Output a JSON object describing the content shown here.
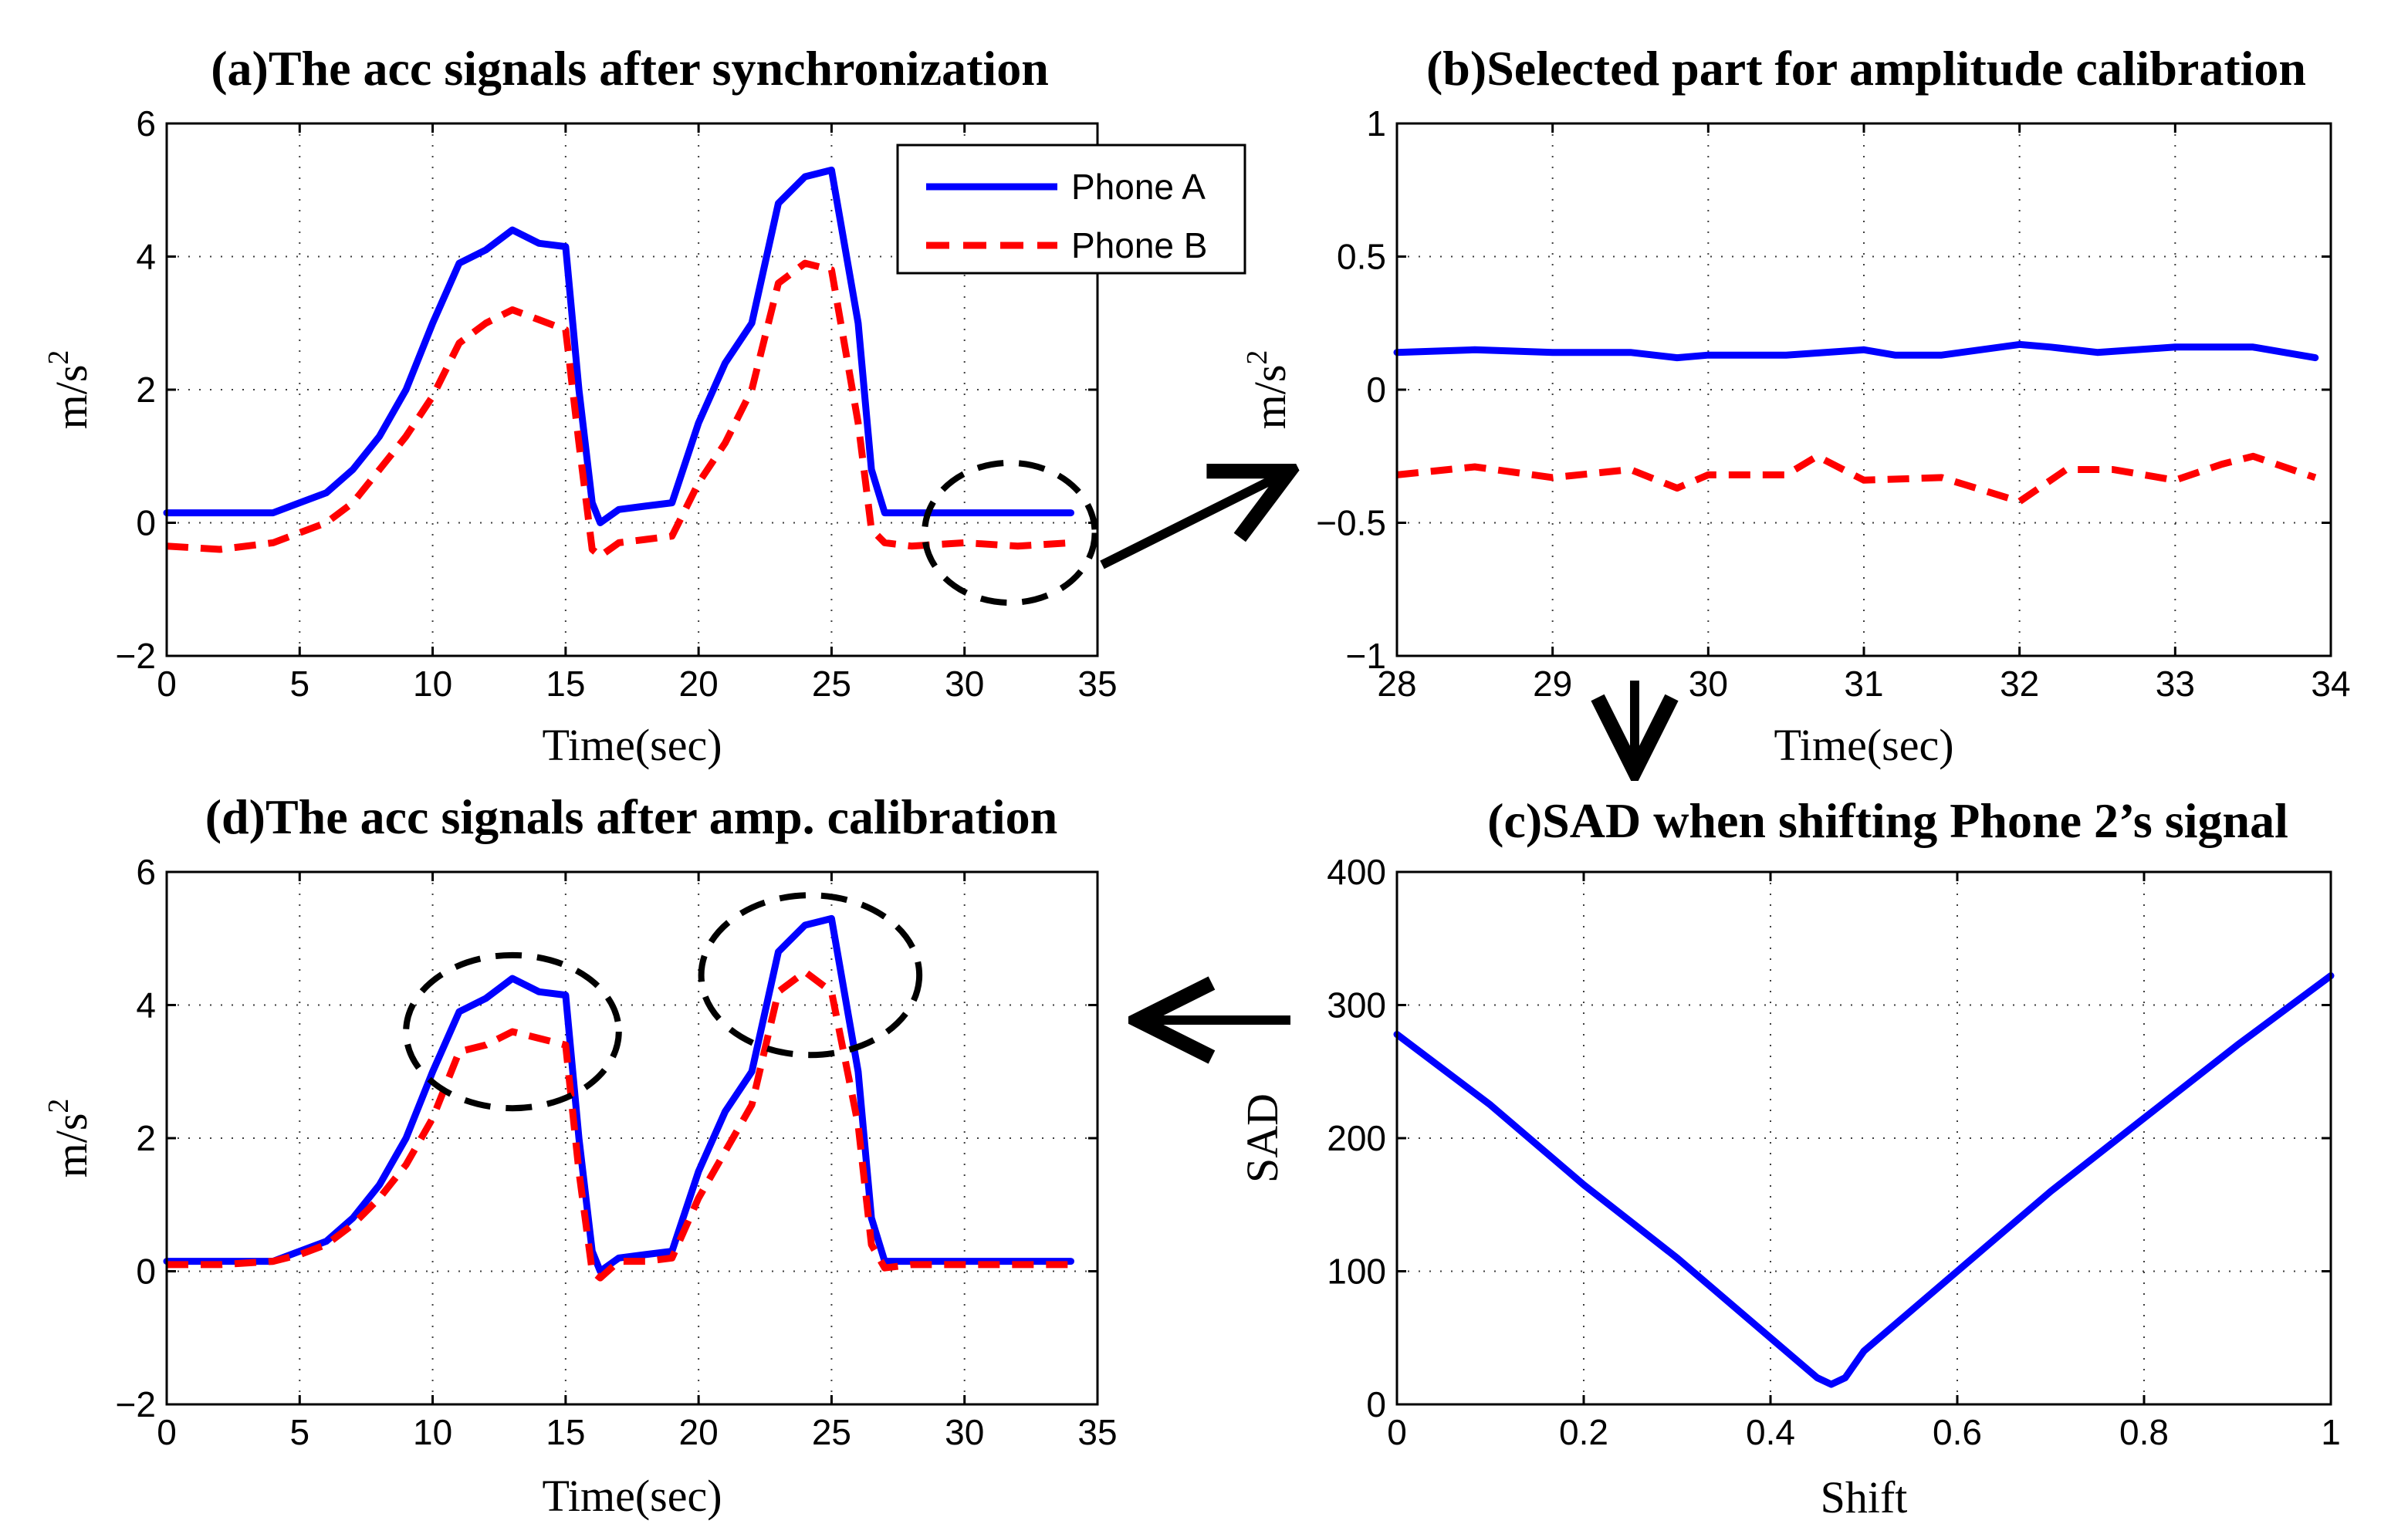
{
  "colors": {
    "phone_a": "#0000ff",
    "phone_b": "#ff0000",
    "annotation": "#000000"
  },
  "chart_data": [
    {
      "id": "a",
      "type": "line",
      "title": "(a)The acc signals after synchronization",
      "xlabel": "Time(sec)",
      "ylabel": "m/s",
      "ylabel_sup": "2",
      "xlim": [
        0,
        35
      ],
      "ylim": [
        -2,
        6
      ],
      "xticks": [
        0,
        5,
        10,
        15,
        20,
        25,
        30,
        35
      ],
      "yticks": [
        -2,
        0,
        2,
        4,
        6
      ],
      "xticklabels": [
        "0",
        "5",
        "10",
        "15",
        "20",
        "25",
        "30",
        "35"
      ],
      "yticklabels": [
        "−2",
        "0",
        "2",
        "4",
        "6"
      ],
      "grid": true,
      "legend": {
        "position": "top-right",
        "entries": [
          "Phone A",
          "Phone B"
        ]
      },
      "series": [
        {
          "name": "Phone A",
          "style": "solid",
          "color": "#0000ff",
          "x": [
            0,
            4,
            5,
            6,
            7,
            8,
            9,
            10,
            11,
            12,
            13,
            14,
            15,
            15.5,
            16,
            16.3,
            17,
            18,
            19,
            20,
            21,
            22,
            23,
            24,
            25,
            26,
            26.5,
            27,
            28,
            30,
            32,
            34
          ],
          "y": [
            0.15,
            0.15,
            0.3,
            0.45,
            0.8,
            1.3,
            2.0,
            3.0,
            3.9,
            4.1,
            4.4,
            4.2,
            4.15,
            2.0,
            0.3,
            0.0,
            0.2,
            0.25,
            0.3,
            1.5,
            2.4,
            3.0,
            4.8,
            5.2,
            5.3,
            3.0,
            0.8,
            0.15,
            0.15,
            0.15,
            0.15,
            0.15
          ]
        },
        {
          "name": "Phone B",
          "style": "dashed",
          "color": "#ff0000",
          "x": [
            0,
            2,
            4,
            5,
            6,
            7,
            8,
            9,
            10,
            11,
            12,
            13,
            14,
            15,
            15.5,
            16,
            16.3,
            17,
            18,
            19,
            20,
            21,
            22,
            23,
            24,
            25,
            26,
            26.5,
            27,
            28,
            30,
            32,
            34
          ],
          "y": [
            -0.35,
            -0.4,
            -0.3,
            -0.15,
            0.0,
            0.3,
            0.8,
            1.3,
            1.9,
            2.7,
            3.0,
            3.2,
            3.05,
            2.9,
            1.2,
            -0.4,
            -0.5,
            -0.3,
            -0.25,
            -0.2,
            0.6,
            1.2,
            2.0,
            3.6,
            3.9,
            3.8,
            1.5,
            -0.1,
            -0.3,
            -0.35,
            -0.3,
            -0.35,
            -0.3
          ]
        }
      ]
    },
    {
      "id": "b",
      "type": "line",
      "title": "(b)Selected part for amplitude calibration",
      "xlabel": "Time(sec)",
      "ylabel": "m/s",
      "ylabel_sup": "2",
      "xlim": [
        28,
        34
      ],
      "ylim": [
        -1,
        1
      ],
      "xticks": [
        28,
        29,
        30,
        31,
        32,
        33,
        34
      ],
      "yticks": [
        -1,
        -0.5,
        0,
        0.5,
        1
      ],
      "xticklabels": [
        "28",
        "29",
        "30",
        "31",
        "32",
        "33",
        "34"
      ],
      "yticklabels": [
        "−1",
        "−0.5",
        "0",
        "0.5",
        "1"
      ],
      "grid": true,
      "series": [
        {
          "name": "Phone A",
          "style": "solid",
          "color": "#0000ff",
          "x": [
            28,
            28.5,
            29,
            29.5,
            29.8,
            30,
            30.5,
            31,
            31.2,
            31.5,
            32,
            32.2,
            32.5,
            33,
            33.5,
            33.9
          ],
          "y": [
            0.14,
            0.15,
            0.14,
            0.14,
            0.12,
            0.13,
            0.13,
            0.15,
            0.13,
            0.13,
            0.17,
            0.16,
            0.14,
            0.16,
            0.16,
            0.12
          ]
        },
        {
          "name": "Phone B",
          "style": "dashed",
          "color": "#ff0000",
          "x": [
            28,
            28.5,
            29,
            29.5,
            29.8,
            30,
            30.5,
            30.7,
            31,
            31.5,
            32,
            32.3,
            32.6,
            33,
            33.3,
            33.5,
            33.9
          ],
          "y": [
            -0.32,
            -0.29,
            -0.33,
            -0.3,
            -0.37,
            -0.32,
            -0.32,
            -0.25,
            -0.34,
            -0.33,
            -0.42,
            -0.3,
            -0.3,
            -0.34,
            -0.28,
            -0.25,
            -0.33
          ]
        }
      ]
    },
    {
      "id": "c",
      "type": "line",
      "title": "(c)SAD when shifting Phone 2’s signal",
      "xlabel": "Shift",
      "ylabel": "SAD",
      "xlim": [
        0,
        1
      ],
      "ylim": [
        0,
        400
      ],
      "xticks": [
        0,
        0.2,
        0.4,
        0.6,
        0.8,
        1
      ],
      "yticks": [
        0,
        100,
        200,
        300,
        400
      ],
      "xticklabels": [
        "0",
        "0.2",
        "0.4",
        "0.6",
        "0.8",
        "1"
      ],
      "yticklabels": [
        "0",
        "100",
        "200",
        "300",
        "400"
      ],
      "grid": true,
      "series": [
        {
          "name": "SAD",
          "style": "solid",
          "color": "#0000ff",
          "x": [
            0,
            0.1,
            0.2,
            0.3,
            0.4,
            0.45,
            0.465,
            0.48,
            0.5,
            0.6,
            0.7,
            0.8,
            0.9,
            1.0
          ],
          "y": [
            278,
            225,
            165,
            110,
            50,
            20,
            15,
            20,
            40,
            100,
            160,
            215,
            270,
            322
          ]
        }
      ]
    },
    {
      "id": "d",
      "type": "line",
      "title": "(d)The acc signals after amp. calibration",
      "xlabel": "Time(sec)",
      "ylabel": "m/s",
      "ylabel_sup": "2",
      "xlim": [
        0,
        35
      ],
      "ylim": [
        -2,
        6
      ],
      "xticks": [
        0,
        5,
        10,
        15,
        20,
        25,
        30,
        35
      ],
      "yticks": [
        -2,
        0,
        2,
        4,
        6
      ],
      "xticklabels": [
        "0",
        "5",
        "10",
        "15",
        "20",
        "25",
        "30",
        "35"
      ],
      "yticklabels": [
        "−2",
        "0",
        "2",
        "4",
        "6"
      ],
      "grid": true,
      "series": [
        {
          "name": "Phone A",
          "style": "solid",
          "color": "#0000ff",
          "x": [
            0,
            4,
            5,
            6,
            7,
            8,
            9,
            10,
            11,
            12,
            13,
            14,
            15,
            15.5,
            16,
            16.3,
            17,
            18,
            19,
            20,
            21,
            22,
            23,
            24,
            25,
            26,
            26.5,
            27,
            28,
            30,
            32,
            34
          ],
          "y": [
            0.15,
            0.15,
            0.3,
            0.45,
            0.8,
            1.3,
            2.0,
            3.0,
            3.9,
            4.1,
            4.4,
            4.2,
            4.15,
            2.0,
            0.3,
            0.0,
            0.2,
            0.25,
            0.3,
            1.5,
            2.4,
            3.0,
            4.8,
            5.2,
            5.3,
            3.0,
            0.8,
            0.15,
            0.15,
            0.15,
            0.15,
            0.15
          ]
        },
        {
          "name": "Phone B",
          "style": "dashed",
          "color": "#ff0000",
          "x": [
            0,
            2,
            4,
            5,
            6,
            7,
            8,
            9,
            10,
            11,
            12,
            13,
            14,
            15,
            15.5,
            16,
            16.3,
            17,
            18,
            19,
            20,
            21,
            22,
            23,
            24,
            25,
            26,
            26.5,
            27,
            28,
            30,
            32,
            34
          ],
          "y": [
            0.1,
            0.1,
            0.15,
            0.25,
            0.4,
            0.7,
            1.1,
            1.6,
            2.3,
            3.3,
            3.4,
            3.6,
            3.5,
            3.4,
            1.5,
            0.0,
            -0.1,
            0.15,
            0.15,
            0.2,
            1.1,
            1.8,
            2.5,
            4.2,
            4.5,
            4.2,
            2.2,
            0.4,
            0.05,
            0.1,
            0.1,
            0.1,
            0.1
          ]
        }
      ]
    }
  ],
  "annotations": {
    "a": [
      {
        "cx": 31.7,
        "cy": -0.15,
        "rx": 3.2,
        "ry": 1.05
      }
    ],
    "d": [
      {
        "cx": 13.0,
        "cy": 3.6,
        "rx": 4.0,
        "ry": 1.15
      },
      {
        "cx": 24.2,
        "cy": 4.45,
        "rx": 4.1,
        "ry": 1.2
      }
    ]
  }
}
